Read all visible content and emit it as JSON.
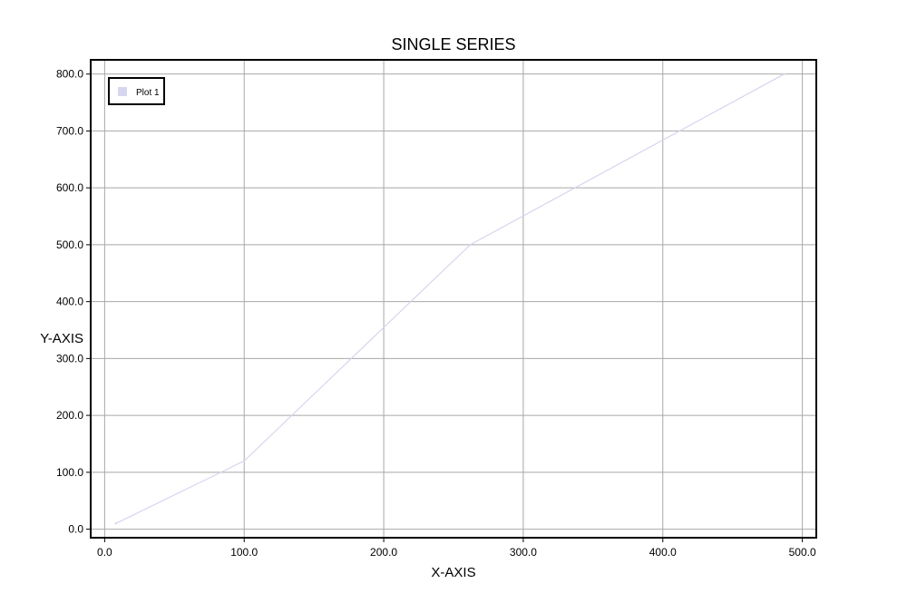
{
  "chart_data": {
    "type": "line",
    "title": "SINGLE SERIES",
    "xlabel": "X-AXIS",
    "ylabel": "Y-AXIS",
    "xlim": [
      -10,
      510
    ],
    "ylim": [
      -15,
      825
    ],
    "x_ticks": [
      0,
      100,
      200,
      300,
      400,
      500
    ],
    "y_ticks": [
      0,
      100,
      200,
      300,
      400,
      500,
      600,
      700,
      800
    ],
    "x_tick_labels": [
      "0.0",
      "100.0",
      "200.0",
      "300.0",
      "400.0",
      "500.0"
    ],
    "y_tick_labels": [
      "0.0",
      "100.0",
      "200.0",
      "300.0",
      "400.0",
      "500.0",
      "600.0",
      "700.0",
      "800.0"
    ],
    "grid": true,
    "legend_position": "top-left",
    "series": [
      {
        "name": "Plot 1",
        "color": "#d6d6ee",
        "x": [
          8,
          100,
          262,
          487
        ],
        "y": [
          10,
          120,
          500,
          800
        ]
      }
    ]
  }
}
